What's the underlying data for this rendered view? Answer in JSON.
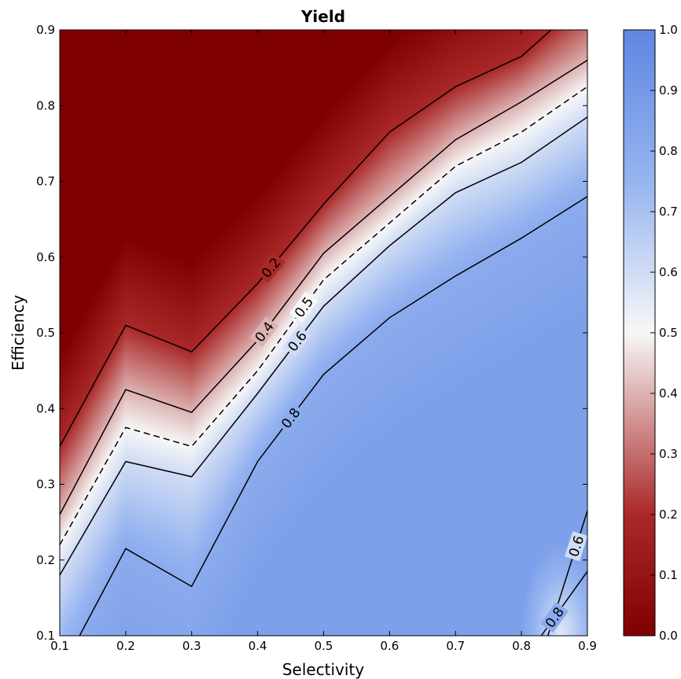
{
  "chart_data": {
    "type": "heatmap",
    "title": "Yield",
    "xlabel": "Selectivity",
    "ylabel": "Efficiency",
    "xlim": [
      0.1,
      0.9
    ],
    "ylim": [
      0.1,
      0.9
    ],
    "x_ticks": [
      "0.1",
      "0.2",
      "0.3",
      "0.4",
      "0.5",
      "0.6",
      "0.7",
      "0.8",
      "0.9"
    ],
    "y_ticks": [
      "0.1",
      "0.2",
      "0.3",
      "0.4",
      "0.5",
      "0.6",
      "0.7",
      "0.8",
      "0.9"
    ],
    "colorbar": {
      "range": [
        0.0,
        1.0
      ],
      "ticks": [
        "0.0",
        "0.1",
        "0.2",
        "0.3",
        "0.4",
        "0.5",
        "0.6",
        "0.7",
        "0.8",
        "0.9",
        "1.0"
      ],
      "colormap": "coolwarm_r",
      "low_color": "#7f0000",
      "mid_color": "#f7f7f7",
      "high_color": "#5f87e2"
    },
    "contours": [
      {
        "level": 0.2,
        "label": "0.2",
        "style": "solid",
        "points": [
          [
            0.1,
            0.35
          ],
          [
            0.2,
            0.51
          ],
          [
            0.3,
            0.475
          ],
          [
            0.4,
            0.565
          ],
          [
            0.5,
            0.67
          ],
          [
            0.6,
            0.765
          ],
          [
            0.7,
            0.825
          ],
          [
            0.8,
            0.865
          ],
          [
            0.845,
            0.9
          ]
        ]
      },
      {
        "level": 0.4,
        "label": "0.4",
        "style": "solid",
        "points": [
          [
            0.1,
            0.26
          ],
          [
            0.2,
            0.425
          ],
          [
            0.3,
            0.395
          ],
          [
            0.4,
            0.49
          ],
          [
            0.5,
            0.605
          ],
          [
            0.6,
            0.68
          ],
          [
            0.7,
            0.755
          ],
          [
            0.8,
            0.805
          ],
          [
            0.9,
            0.86
          ]
        ]
      },
      {
        "level": 0.5,
        "label": "0.5",
        "style": "dashed",
        "points": [
          [
            0.1,
            0.22
          ],
          [
            0.2,
            0.375
          ],
          [
            0.3,
            0.35
          ],
          [
            0.4,
            0.45
          ],
          [
            0.5,
            0.57
          ],
          [
            0.6,
            0.645
          ],
          [
            0.7,
            0.72
          ],
          [
            0.8,
            0.765
          ],
          [
            0.9,
            0.825
          ]
        ]
      },
      {
        "level": 0.6,
        "label": "0.6",
        "style": "solid",
        "points": [
          [
            0.1,
            0.18
          ],
          [
            0.2,
            0.33
          ],
          [
            0.3,
            0.31
          ],
          [
            0.4,
            0.42
          ],
          [
            0.5,
            0.535
          ],
          [
            0.6,
            0.615
          ],
          [
            0.7,
            0.685
          ],
          [
            0.8,
            0.725
          ],
          [
            0.9,
            0.785
          ]
        ]
      },
      {
        "level": 0.8,
        "label": "0.8",
        "style": "solid",
        "points": [
          [
            0.13,
            0.1
          ],
          [
            0.2,
            0.215
          ],
          [
            0.3,
            0.165
          ],
          [
            0.4,
            0.33
          ],
          [
            0.5,
            0.445
          ],
          [
            0.6,
            0.52
          ],
          [
            0.7,
            0.575
          ],
          [
            0.8,
            0.625
          ],
          [
            0.9,
            0.68
          ]
        ]
      },
      {
        "level": 0.8,
        "label": "0.8",
        "style": "solid",
        "points": [
          [
            0.83,
            0.1
          ],
          [
            0.9,
            0.185
          ]
        ]
      },
      {
        "level": 0.6,
        "label": "0.6",
        "style": "solid",
        "points": [
          [
            0.84,
            0.1
          ],
          [
            0.9,
            0.265
          ]
        ]
      }
    ]
  }
}
